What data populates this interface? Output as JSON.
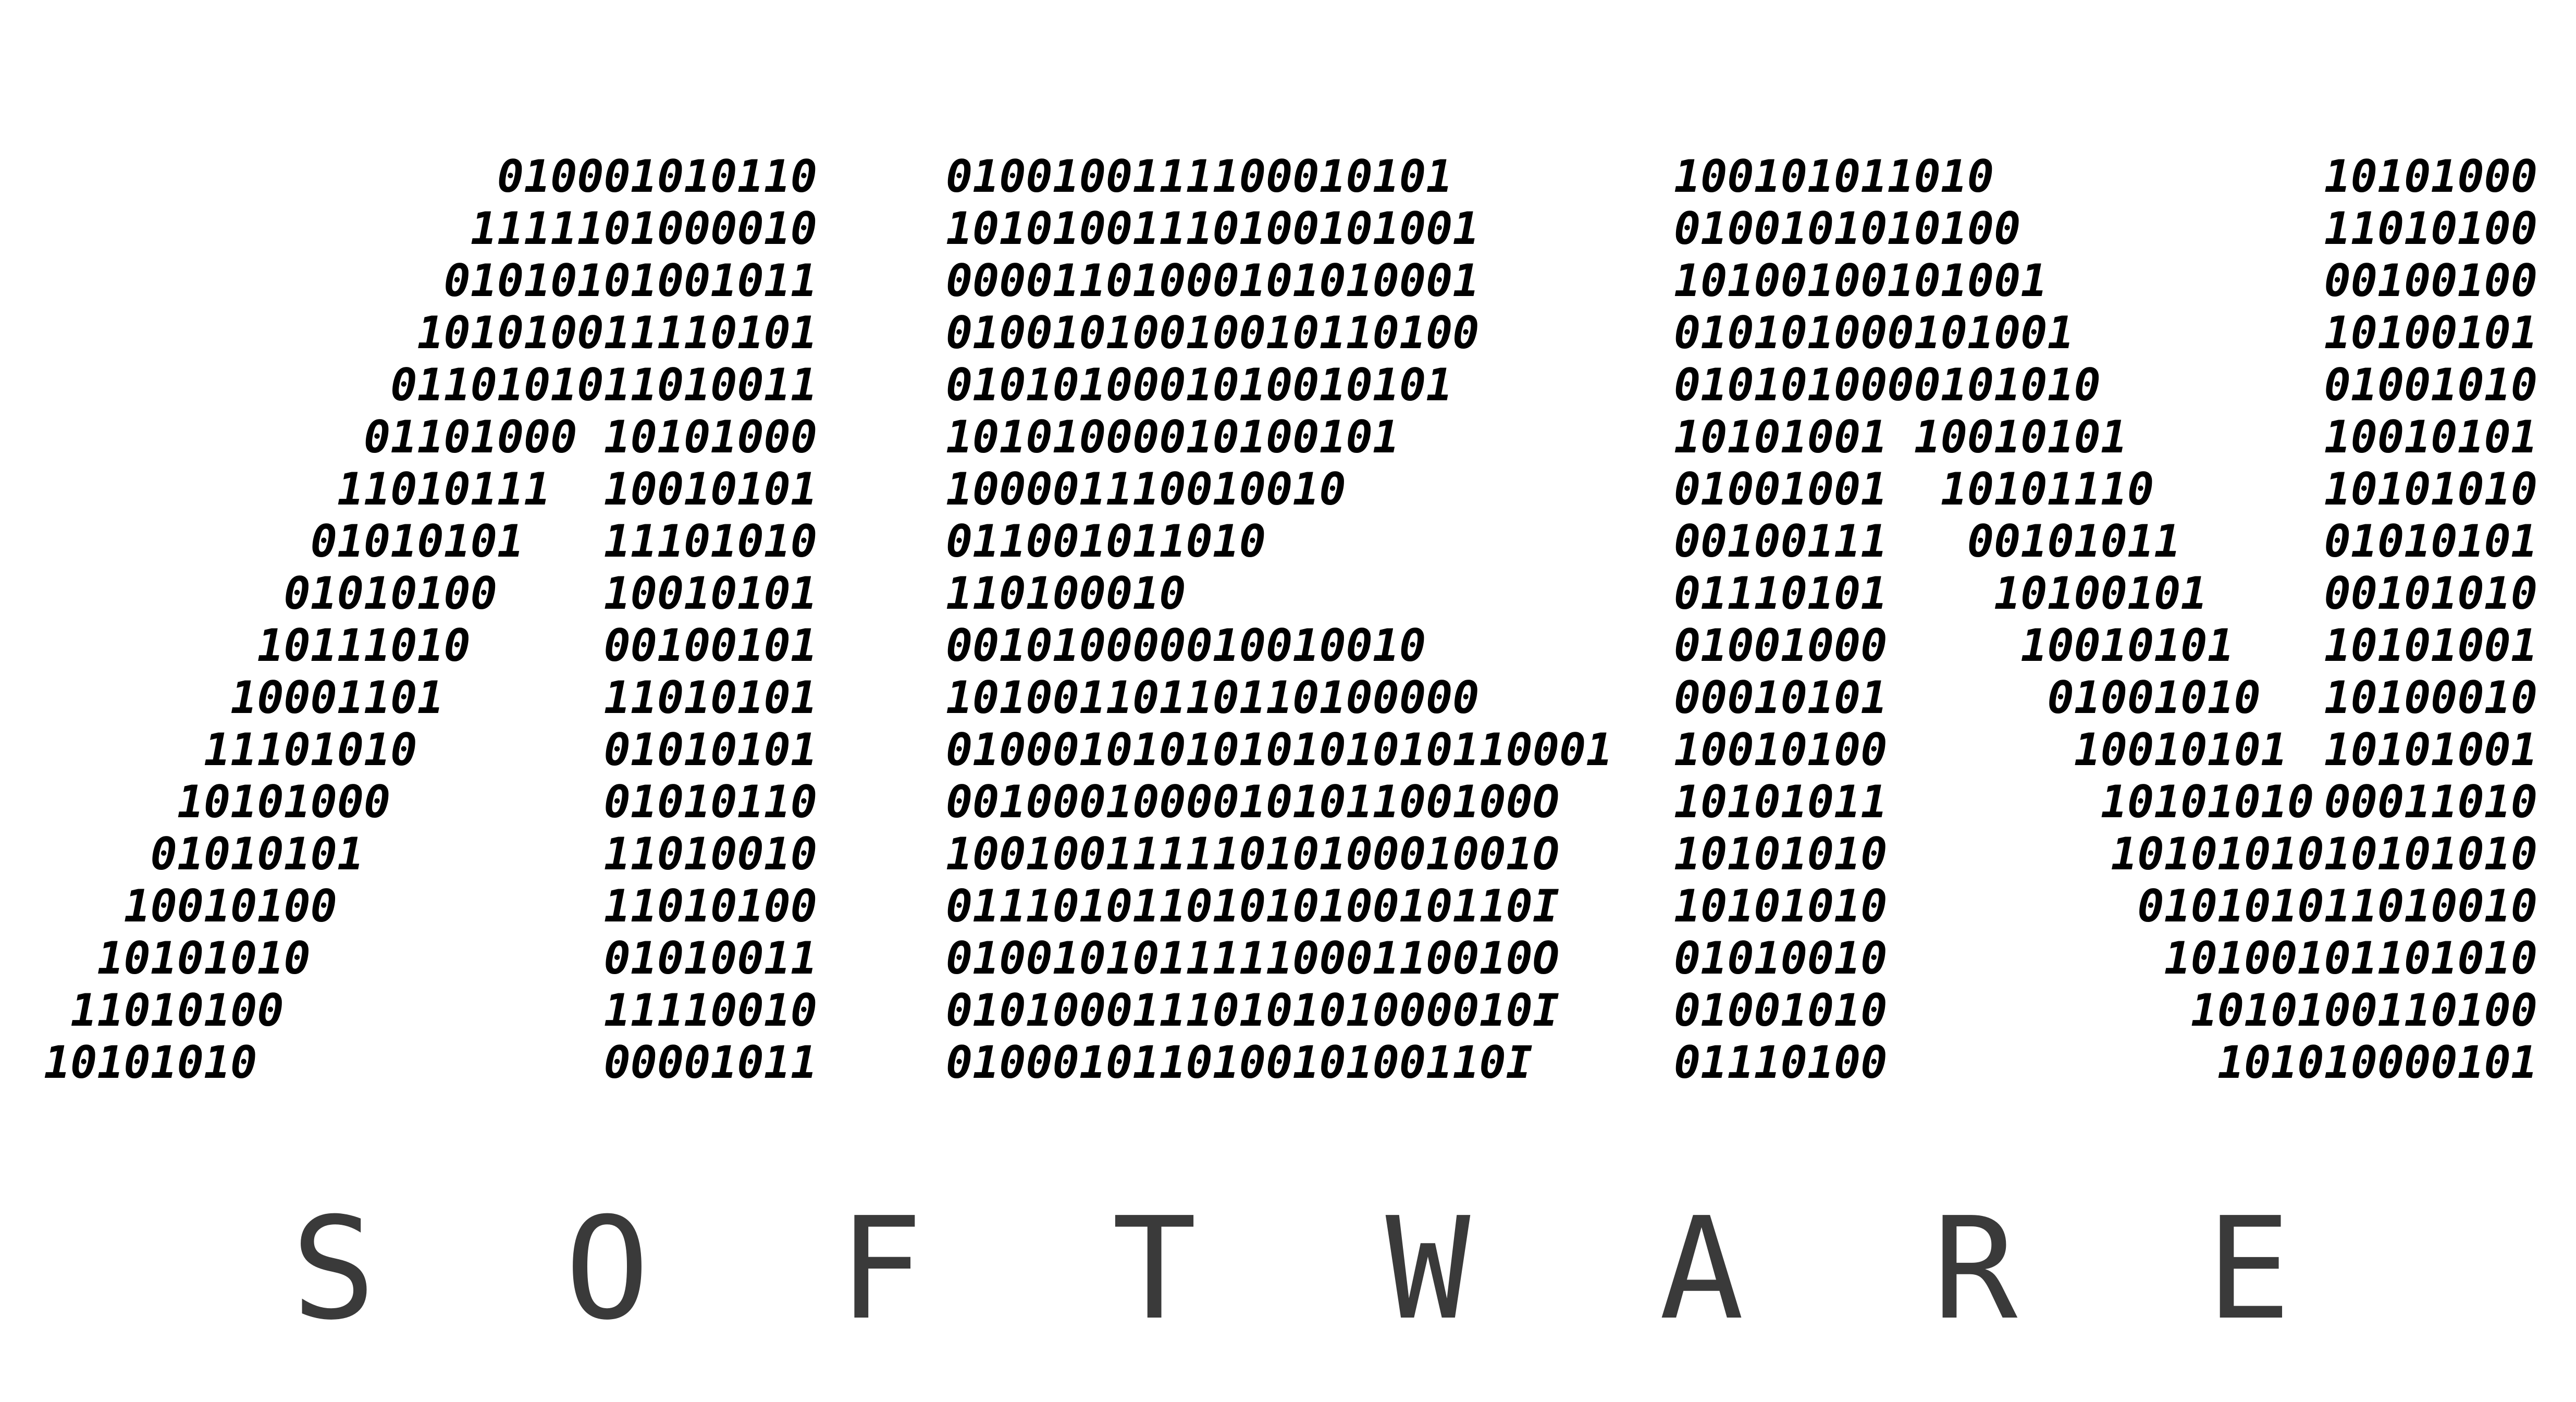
{
  "logo": {
    "letters": [
      {
        "name": "A",
        "lines": [
          "010001010110",
          "1111101000010",
          "01010101001011",
          "101010011110101",
          "0110101011010011",
          "01101000 10101000",
          "11010111  10010101",
          "01010101   11101010",
          "01010100    10010101",
          "10111010     00100101",
          "10001101      11010101",
          "11101010       01010101",
          "10101000        01010110",
          "01010101         11010010",
          "10010100          11010100",
          "10101010           01010011",
          "11010100            11110010",
          "10101010             00001011"
        ]
      },
      {
        "name": "E",
        "lines": [
          "0100100111100010101",
          "10101001110100101001",
          "00001101000101010001",
          "01001010010010110100",
          "0101010001010010101",
          "10101000010100101",
          "100001110010010",
          "011001011010",
          "110100010",
          "001010000010010010",
          "10100110110110100000",
          "0100010101010101010110001",
          "0010001000010101100100O",
          "1001001111101010001001O",
          "0111010110101010010110I",
          "0100101011111000110010O",
          "0101000111010101000010I",
          "010001011010010100110I"
        ]
      },
      {
        "name": "N",
        "lines": [
          "100101011010",
          "0100101010100",
          "10100100101001",
          "010101000101001",
          "0101010000101010",
          "10101001 10010101",
          "01001001  10101110",
          "00100111   00101011",
          "01110101    10100101",
          "01001000     10010101",
          "00010101      01001010",
          "10010100       10010101",
          "10101011        10101010",
          "10101010",
          "10101010",
          "01010010",
          "01001010",
          "01110100"
        ]
      },
      {
        "name": "M",
        "lines": [
          "10101000",
          "11010100",
          "00100100",
          "10100101",
          "01001010",
          "10010101",
          "10101010",
          "01010101",
          "00101010",
          "10101001",
          "10100010",
          "10101001",
          "00011010",
          "1010101010101010",
          "010101011010010",
          "10100101101010",
          "1010100110100",
          "101010000101"
        ]
      }
    ]
  },
  "tagline": {
    "letters": [
      "S",
      "O",
      "F",
      "T",
      "W",
      "A",
      "R",
      "E"
    ]
  }
}
